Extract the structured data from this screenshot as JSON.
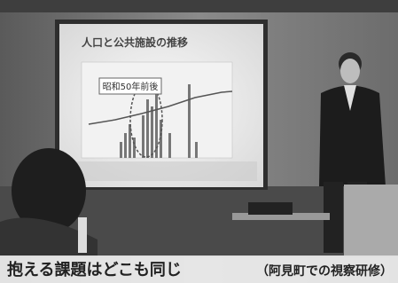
{
  "slide": {
    "title": "人口と公共施設の推移",
    "annotation": "昭和50年前後"
  },
  "caption": {
    "main": "抱える課題はどこも同じ",
    "sub": "（阿見町での視察研修）"
  }
}
